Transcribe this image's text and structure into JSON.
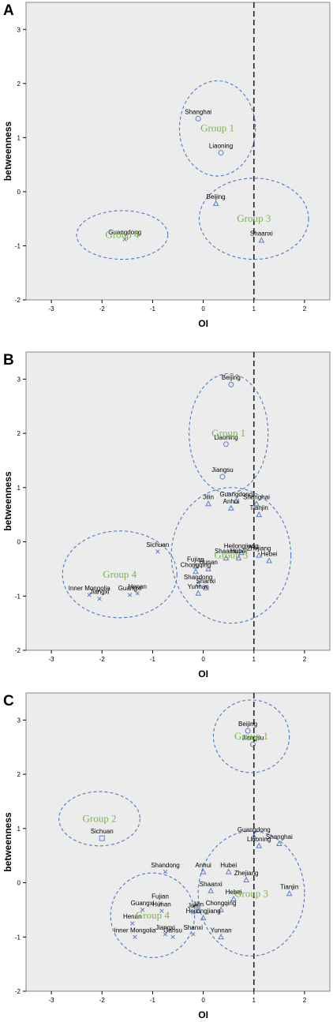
{
  "colors": {
    "plot_bg": "#ececec",
    "marker": "#5a7fc6",
    "ellipse": "#4a78cc",
    "group_text": "#7ab648",
    "cutoff": "#222222"
  },
  "chart_data": [
    {
      "panel": "A",
      "type": "scatter",
      "xlabel": "OI",
      "ylabel": "betweenness",
      "xlim": [
        -3.5,
        2.5
      ],
      "ylim": [
        -2,
        3.5
      ],
      "xticks": [
        -3,
        -2,
        -1,
        0,
        1,
        2
      ],
      "yticks": [
        -2,
        -1,
        0,
        1,
        2,
        3
      ],
      "cutoff_x": 1,
      "points": [
        {
          "name": "Shanghai",
          "x": -0.1,
          "y": 1.35,
          "marker": "circle"
        },
        {
          "name": "Liaoning",
          "x": 0.35,
          "y": 0.72,
          "marker": "circle"
        },
        {
          "name": "Beijing",
          "x": 0.25,
          "y": -0.22,
          "marker": "triangle"
        },
        {
          "name": "Shaanxi",
          "x": 1.15,
          "y": -0.9,
          "marker": "triangle"
        },
        {
          "name": "Guangdong",
          "x": -1.55,
          "y": -0.88,
          "marker": "cross"
        }
      ],
      "groups": [
        {
          "label": "Group 1",
          "cx": 0.28,
          "cy": 1.17,
          "rx": 0.75,
          "ry": 0.88
        },
        {
          "label": "Group 3",
          "cx": 1.0,
          "cy": -0.5,
          "rx": 1.08,
          "ry": 0.75
        },
        {
          "label": "Group 4",
          "cx": -1.6,
          "cy": -0.8,
          "rx": 0.9,
          "ry": 0.45
        }
      ]
    },
    {
      "panel": "B",
      "type": "scatter",
      "xlabel": "OI",
      "ylabel": "betweenness",
      "xlim": [
        -3.5,
        2.5
      ],
      "ylim": [
        -2,
        3.5
      ],
      "xticks": [
        -3,
        -2,
        -1,
        0,
        1,
        2
      ],
      "yticks": [
        -2,
        -1,
        0,
        1,
        2,
        3
      ],
      "cutoff_x": 1,
      "points": [
        {
          "name": "Beijing",
          "x": 0.55,
          "y": 2.9,
          "marker": "circle"
        },
        {
          "name": "Liaoning",
          "x": 0.45,
          "y": 1.8,
          "marker": "circle"
        },
        {
          "name": "Jiangsu",
          "x": 0.38,
          "y": 1.2,
          "marker": "circle"
        },
        {
          "name": "Guangdong",
          "x": 0.65,
          "y": 0.75,
          "marker": "triangle"
        },
        {
          "name": "Shanghai",
          "x": 1.05,
          "y": 0.7,
          "marker": "triangle"
        },
        {
          "name": "Tianjin",
          "x": 1.1,
          "y": 0.5,
          "marker": "triangle"
        },
        {
          "name": "Jilin",
          "x": 0.1,
          "y": 0.7,
          "marker": "triangle"
        },
        {
          "name": "Anhui",
          "x": 0.55,
          "y": 0.62,
          "marker": "triangle"
        },
        {
          "name": "Heilongjiang",
          "x": 0.75,
          "y": -0.2,
          "marker": "triangle"
        },
        {
          "name": "Shaanxi",
          "x": 0.45,
          "y": -0.3,
          "marker": "triangle"
        },
        {
          "name": "Hubei",
          "x": 0.7,
          "y": -0.3,
          "marker": "triangle"
        },
        {
          "name": "Zhejiang",
          "x": 1.1,
          "y": -0.25,
          "marker": "triangle"
        },
        {
          "name": "Hebei",
          "x": 1.3,
          "y": -0.35,
          "marker": "triangle"
        },
        {
          "name": "Fujian",
          "x": -0.15,
          "y": -0.45,
          "marker": "triangle"
        },
        {
          "name": "Chongqing",
          "x": -0.15,
          "y": -0.55,
          "marker": "triangle"
        },
        {
          "name": "Hunan",
          "x": 0.1,
          "y": -0.5,
          "marker": "triangle"
        },
        {
          "name": "Shandong",
          "x": -0.1,
          "y": -0.78,
          "marker": "triangle"
        },
        {
          "name": "Shanxi",
          "x": 0.05,
          "y": -0.85,
          "marker": "triangle"
        },
        {
          "name": "Yunnan",
          "x": -0.1,
          "y": -0.95,
          "marker": "triangle"
        },
        {
          "name": "Sichuan",
          "x": -0.9,
          "y": -0.18,
          "marker": "cross"
        },
        {
          "name": "Henan",
          "x": -1.3,
          "y": -0.95,
          "marker": "cross"
        },
        {
          "name": "Guangxi",
          "x": -1.45,
          "y": -0.98,
          "marker": "cross"
        },
        {
          "name": "Inner Mongolia",
          "x": -2.25,
          "y": -0.98,
          "marker": "cross"
        },
        {
          "name": "Jiangxi",
          "x": -2.05,
          "y": -1.05,
          "marker": "cross"
        }
      ],
      "groups": [
        {
          "label": "Group 1",
          "cx": 0.5,
          "cy": 2.0,
          "rx": 0.78,
          "ry": 1.1
        },
        {
          "label": "Group 3",
          "cx": 0.55,
          "cy": -0.25,
          "rx": 1.18,
          "ry": 1.25
        },
        {
          "label": "Group 4",
          "cx": -1.65,
          "cy": -0.6,
          "rx": 1.13,
          "ry": 0.8
        }
      ]
    },
    {
      "panel": "C",
      "type": "scatter",
      "xlabel": "OI",
      "ylabel": "betweenness",
      "xlim": [
        -3.5,
        2.5
      ],
      "ylim": [
        -2,
        3.5
      ],
      "xticks": [
        -3,
        -2,
        -1,
        0,
        1,
        2
      ],
      "yticks": [
        -2,
        -1,
        0,
        1,
        2,
        3
      ],
      "cutoff_x": 1,
      "points": [
        {
          "name": "Beijing",
          "x": 0.88,
          "y": 2.8,
          "marker": "circle"
        },
        {
          "name": "Jiangsu",
          "x": 0.98,
          "y": 2.55,
          "marker": "circle"
        },
        {
          "name": "Sichuan",
          "x": -2.0,
          "y": 0.82,
          "marker": "square"
        },
        {
          "name": "Guangdong",
          "x": 1.0,
          "y": 0.85,
          "marker": "triangle"
        },
        {
          "name": "Shanghai",
          "x": 1.5,
          "y": 0.72,
          "marker": "triangle"
        },
        {
          "name": "Liaoning",
          "x": 1.1,
          "y": 0.68,
          "marker": "triangle"
        },
        {
          "name": "Tianjin",
          "x": 1.7,
          "y": -0.2,
          "marker": "triangle"
        },
        {
          "name": "Anhui",
          "x": 0.0,
          "y": 0.2,
          "marker": "triangle"
        },
        {
          "name": "Hubei",
          "x": 0.5,
          "y": 0.2,
          "marker": "triangle"
        },
        {
          "name": "Zhejiang",
          "x": 0.85,
          "y": 0.05,
          "marker": "triangle"
        },
        {
          "name": "Shaanxi",
          "x": 0.15,
          "y": -0.15,
          "marker": "triangle"
        },
        {
          "name": "Hebei",
          "x": 0.6,
          "y": -0.3,
          "marker": "triangle"
        },
        {
          "name": "Jilin",
          "x": -0.1,
          "y": -0.52,
          "marker": "triangle"
        },
        {
          "name": "Chongqing",
          "x": 0.35,
          "y": -0.5,
          "marker": "triangle"
        },
        {
          "name": "Heilongjiang",
          "x": 0.0,
          "y": -0.65,
          "marker": "triangle"
        },
        {
          "name": "Yunnan",
          "x": 0.35,
          "y": -1.0,
          "marker": "triangle"
        },
        {
          "name": "Shandong",
          "x": -0.75,
          "y": 0.2,
          "marker": "cross"
        },
        {
          "name": "Guangxi",
          "x": -1.2,
          "y": -0.5,
          "marker": "cross"
        },
        {
          "name": "Fujian",
          "x": -0.85,
          "y": -0.38,
          "marker": "cross"
        },
        {
          "name": "Hunan",
          "x": -0.82,
          "y": -0.52,
          "marker": "cross"
        },
        {
          "name": "Henan",
          "x": -1.4,
          "y": -0.75,
          "marker": "cross"
        },
        {
          "name": "Jilin ",
          "x": -0.2,
          "y": -0.55,
          "marker": "cross"
        },
        {
          "name": "Inner Mongolia",
          "x": -1.35,
          "y": -1.0,
          "marker": "cross"
        },
        {
          "name": "Jiangxi",
          "x": -0.75,
          "y": -0.95,
          "marker": "cross"
        },
        {
          "name": "Shanxi",
          "x": -0.2,
          "y": -0.95,
          "marker": "cross"
        },
        {
          "name": "Gansu",
          "x": -0.6,
          "y": -1.0,
          "marker": "cross"
        }
      ],
      "groups": [
        {
          "label": "Group 1",
          "cx": 0.95,
          "cy": 2.7,
          "rx": 0.75,
          "ry": 0.67
        },
        {
          "label": "Group 2",
          "cx": -2.05,
          "cy": 1.18,
          "rx": 0.8,
          "ry": 0.5
        },
        {
          "label": "Group 3",
          "cx": 0.95,
          "cy": -0.2,
          "rx": 1.05,
          "ry": 1.15
        },
        {
          "label": "Group 4",
          "cx": -1.0,
          "cy": -0.6,
          "rx": 0.83,
          "ry": 0.78
        }
      ]
    }
  ]
}
